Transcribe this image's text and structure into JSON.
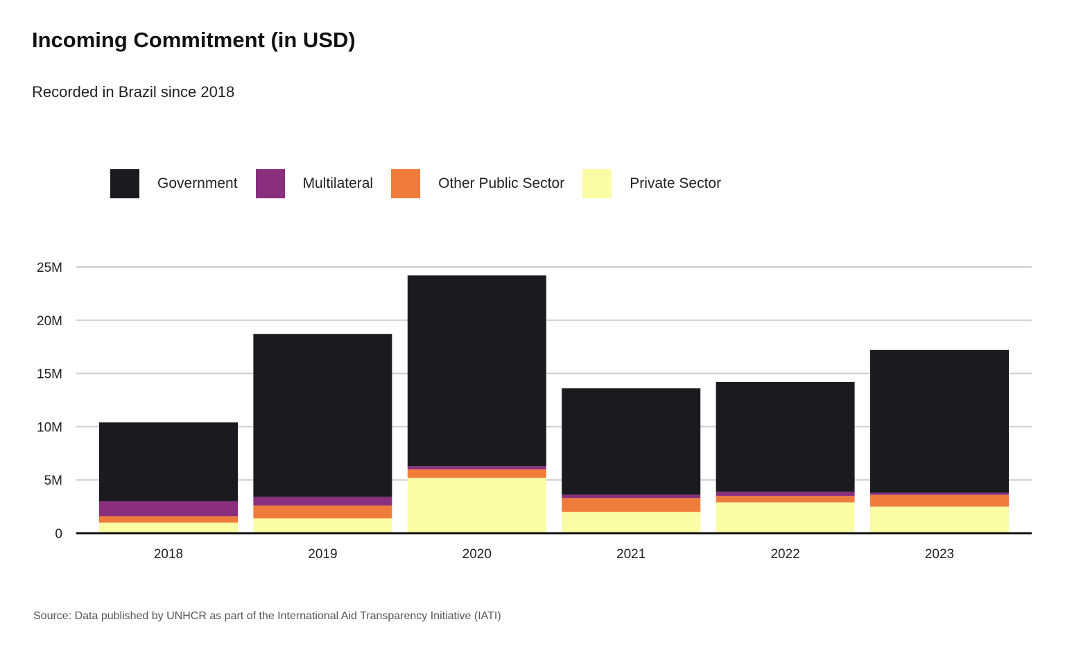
{
  "header": {
    "title": "Incoming Commitment (in USD)",
    "subtitle": "Recorded in Brazil since 2018"
  },
  "footer": {
    "source": "Source: Data published by UNHCR as part of the International Aid Transparency Initiative (IATI)"
  },
  "legend": [
    {
      "name": "Government",
      "color": "#1b1a1f"
    },
    {
      "name": "Multilateral",
      "color": "#8a2e7e"
    },
    {
      "name": "Other Public Sector",
      "color": "#f07c3c"
    },
    {
      "name": "Private Sector",
      "color": "#fbfca6"
    }
  ],
  "chart_data": {
    "type": "bar",
    "stacked": true,
    "title": "Incoming Commitment (in USD)",
    "subtitle": "Recorded in Brazil since 2018",
    "categories": [
      "2018",
      "2019",
      "2020",
      "2021",
      "2022",
      "2023"
    ],
    "series": [
      {
        "name": "Private Sector",
        "color": "#fbfca6",
        "values": [
          1000000,
          1400000,
          5200000,
          2000000,
          2900000,
          2500000
        ]
      },
      {
        "name": "Other Public Sector",
        "color": "#f07c3c",
        "values": [
          600000,
          1200000,
          800000,
          1300000,
          600000,
          1100000
        ]
      },
      {
        "name": "Multilateral",
        "color": "#8a2e7e",
        "values": [
          1400000,
          800000,
          300000,
          300000,
          400000,
          200000
        ]
      },
      {
        "name": "Government",
        "color": "#1b1a1f",
        "values": [
          7400000,
          15300000,
          17900000,
          10000000,
          10300000,
          13400000
        ]
      }
    ],
    "ylim": [
      0,
      25000000
    ],
    "yticks": [
      {
        "value": 0,
        "label": "0"
      },
      {
        "value": 5000000,
        "label": "5M"
      },
      {
        "value": 10000000,
        "label": "10M"
      },
      {
        "value": 15000000,
        "label": "15M"
      },
      {
        "value": 20000000,
        "label": "20M"
      },
      {
        "value": 25000000,
        "label": "25M"
      }
    ],
    "xlabel": "",
    "ylabel": "",
    "grid": true,
    "legend_position": "top"
  }
}
